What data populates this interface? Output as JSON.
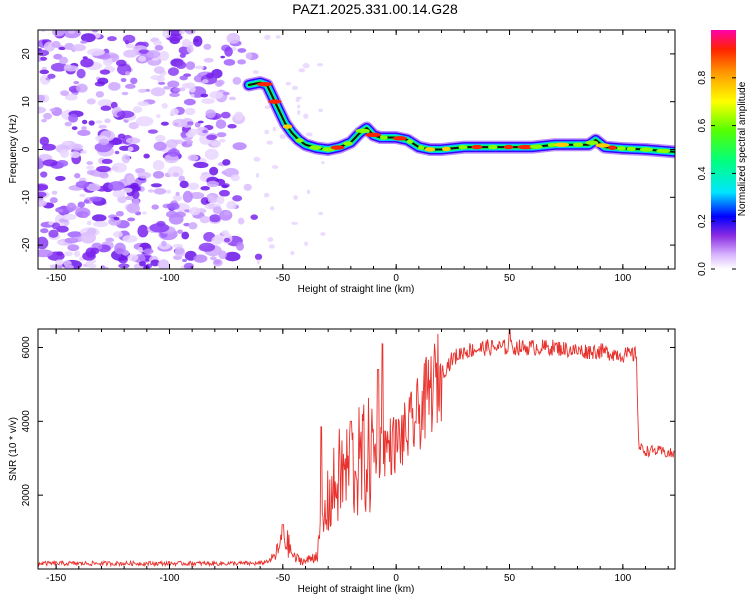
{
  "chart_data": [
    {
      "type": "heatmap",
      "title": "PAZ1.2025.331.00.14.G28",
      "xlabel": "Height of straight line (km)",
      "ylabel": "Frequency (Hz)",
      "xlim": [
        -158,
        123
      ],
      "ylim": [
        -25,
        25
      ],
      "xticks": [
        -150,
        -100,
        -50,
        0,
        50,
        100
      ],
      "yticks": [
        -20,
        -10,
        0,
        10,
        20
      ],
      "colorbar": {
        "label": "Normalized spectral amplitude",
        "range": [
          0,
          1
        ],
        "ticks": [
          0.0,
          0.2,
          0.4,
          0.6,
          0.8
        ],
        "tick_labels": [
          "0.0",
          "0.2",
          "0.4",
          "0.6",
          "0.8"
        ]
      },
      "ridge": {
        "x": [
          -65,
          -60,
          -57,
          -55,
          -52,
          -49,
          -46,
          -43,
          -40,
          -35,
          -30,
          -25,
          -20,
          -16,
          -13,
          -10,
          -7,
          -3,
          0,
          5,
          10,
          15,
          20,
          30,
          40,
          50,
          60,
          70,
          80,
          85,
          88,
          92,
          100,
          110,
          123
        ],
        "freq": [
          13.5,
          14,
          13.5,
          11.5,
          8.5,
          5.5,
          3.5,
          2,
          1,
          0.3,
          0,
          0.5,
          1.5,
          3.5,
          4.5,
          3,
          2.5,
          2.5,
          2.5,
          2,
          0.5,
          0,
          0,
          0.5,
          0.5,
          0.5,
          0.5,
          1,
          1,
          1,
          2,
          0.5,
          0.2,
          0,
          -0.5
        ]
      },
      "noise_region_x": [
        -158,
        -60
      ]
    },
    {
      "type": "line",
      "title": "",
      "xlabel": "Height of straight line (km)",
      "ylabel": "SNR (10 * v/v)",
      "xlim": [
        -158,
        123
      ],
      "ylim": [
        0,
        6500
      ],
      "xticks": [
        -150,
        -100,
        -50,
        0,
        50,
        100
      ],
      "yticks": [
        2000,
        4000,
        6000
      ],
      "color": "#e8312c",
      "envelope": {
        "x": [
          -158,
          -60,
          -55,
          -52,
          -50,
          -48,
          -45,
          -40,
          -35,
          -30,
          -25,
          -20,
          -15,
          -10,
          -5,
          0,
          5,
          10,
          15,
          20,
          25,
          30,
          40,
          50,
          60,
          70,
          80,
          90,
          100,
          106,
          107,
          110,
          115,
          123
        ],
        "snr": [
          150,
          150,
          250,
          500,
          900,
          700,
          300,
          200,
          400,
          1800,
          2500,
          2700,
          2900,
          3100,
          3300,
          3400,
          3700,
          4200,
          4800,
          5300,
          5700,
          5900,
          6000,
          6000,
          6000,
          6000,
          5900,
          5900,
          5800,
          5800,
          3300,
          3200,
          3200,
          3100
        ]
      },
      "spikes": [
        {
          "x": -50,
          "snr": 1200
        },
        {
          "x": -33,
          "snr": 3850
        },
        {
          "x": -20,
          "snr": 4000
        },
        {
          "x": -8,
          "snr": 5400
        },
        {
          "x": -6,
          "snr": 6100
        },
        {
          "x": 50,
          "snr": 6500
        }
      ]
    }
  ]
}
